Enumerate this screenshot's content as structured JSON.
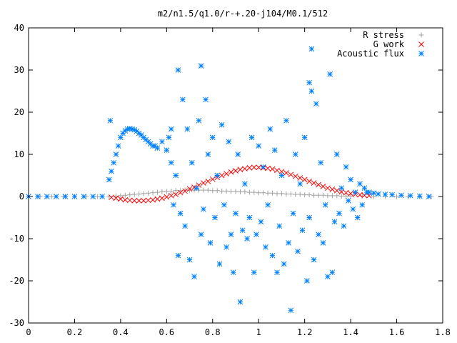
{
  "chart_data": {
    "type": "scatter",
    "title": "m2/n1.5/q1.0/r-+.20-j104/M0.1/512",
    "xlabel": "",
    "ylabel": "",
    "xlim": [
      0,
      1.8
    ],
    "ylim": [
      -30,
      40
    ],
    "x_ticks": [
      "0",
      "0.2",
      "0.4",
      "0.6",
      "0.8",
      "1",
      "1.2",
      "1.4",
      "1.6",
      "1.8"
    ],
    "y_ticks": [
      "-30",
      "-20",
      "-10",
      "0",
      "10",
      "20",
      "30",
      "40"
    ],
    "x_tick_values": [
      0,
      0.2,
      0.4,
      0.6,
      0.8,
      1.0,
      1.2,
      1.4,
      1.6,
      1.8
    ],
    "y_tick_values": [
      -30,
      -20,
      -10,
      0,
      10,
      20,
      30,
      40
    ],
    "grid": false,
    "legend_position": "top-right",
    "series": [
      {
        "name": "R stress",
        "marker": "plus",
        "color": "#a0a0a0",
        "points": [
          [
            0.0,
            0
          ],
          [
            0.05,
            0
          ],
          [
            0.1,
            0
          ],
          [
            0.15,
            0
          ],
          [
            0.2,
            0
          ],
          [
            0.25,
            0
          ],
          [
            0.3,
            0
          ],
          [
            0.35,
            0
          ],
          [
            0.38,
            0.1
          ],
          [
            0.4,
            0.2
          ],
          [
            0.42,
            0.3
          ],
          [
            0.44,
            0.4
          ],
          [
            0.46,
            0.5
          ],
          [
            0.48,
            0.6
          ],
          [
            0.5,
            0.7
          ],
          [
            0.52,
            0.8
          ],
          [
            0.54,
            0.9
          ],
          [
            0.56,
            1.0
          ],
          [
            0.58,
            1.1
          ],
          [
            0.6,
            1.2
          ],
          [
            0.62,
            1.3
          ],
          [
            0.64,
            1.4
          ],
          [
            0.66,
            1.4
          ],
          [
            0.68,
            1.5
          ],
          [
            0.7,
            1.5
          ],
          [
            0.72,
            1.5
          ],
          [
            0.74,
            1.5
          ],
          [
            0.76,
            1.5
          ],
          [
            0.78,
            1.5
          ],
          [
            0.8,
            1.4
          ],
          [
            0.82,
            1.4
          ],
          [
            0.84,
            1.3
          ],
          [
            0.86,
            1.3
          ],
          [
            0.88,
            1.2
          ],
          [
            0.9,
            1.2
          ],
          [
            0.92,
            1.1
          ],
          [
            0.94,
            1.1
          ],
          [
            0.96,
            1.0
          ],
          [
            0.98,
            1.0
          ],
          [
            1.0,
            0.9
          ],
          [
            1.02,
            0.9
          ],
          [
            1.04,
            0.8
          ],
          [
            1.06,
            0.8
          ],
          [
            1.08,
            0.7
          ],
          [
            1.1,
            0.7
          ],
          [
            1.12,
            0.6
          ],
          [
            1.14,
            0.6
          ],
          [
            1.16,
            0.5
          ],
          [
            1.18,
            0.5
          ],
          [
            1.2,
            0.4
          ],
          [
            1.22,
            0.4
          ],
          [
            1.24,
            0.3
          ],
          [
            1.26,
            0.3
          ],
          [
            1.28,
            0.3
          ],
          [
            1.3,
            0.2
          ],
          [
            1.32,
            0.2
          ],
          [
            1.34,
            0.2
          ],
          [
            1.36,
            0.1
          ],
          [
            1.38,
            0.1
          ],
          [
            1.4,
            0.1
          ],
          [
            1.45,
            0.1
          ],
          [
            1.5,
            0
          ],
          [
            1.55,
            0
          ],
          [
            1.6,
            0
          ],
          [
            1.65,
            0
          ],
          [
            1.7,
            0
          ],
          [
            1.75,
            0
          ]
        ]
      },
      {
        "name": "G work",
        "marker": "cross",
        "color": "#ff0000",
        "points": [
          [
            0.36,
            -0.2
          ],
          [
            0.38,
            -0.4
          ],
          [
            0.4,
            -0.6
          ],
          [
            0.42,
            -0.8
          ],
          [
            0.44,
            -0.9
          ],
          [
            0.46,
            -1.0
          ],
          [
            0.48,
            -1.0
          ],
          [
            0.5,
            -1.0
          ],
          [
            0.52,
            -0.9
          ],
          [
            0.54,
            -0.8
          ],
          [
            0.56,
            -0.6
          ],
          [
            0.58,
            -0.4
          ],
          [
            0.6,
            -0.1
          ],
          [
            0.62,
            0.2
          ],
          [
            0.64,
            0.5
          ],
          [
            0.66,
            0.9
          ],
          [
            0.68,
            1.3
          ],
          [
            0.7,
            1.8
          ],
          [
            0.72,
            2.2
          ],
          [
            0.74,
            2.7
          ],
          [
            0.76,
            3.2
          ],
          [
            0.78,
            3.6
          ],
          [
            0.8,
            4.1
          ],
          [
            0.82,
            4.5
          ],
          [
            0.84,
            5.0
          ],
          [
            0.86,
            5.4
          ],
          [
            0.88,
            5.8
          ],
          [
            0.9,
            6.1
          ],
          [
            0.92,
            6.4
          ],
          [
            0.94,
            6.6
          ],
          [
            0.96,
            6.8
          ],
          [
            0.98,
            6.9
          ],
          [
            1.0,
            6.9
          ],
          [
            1.02,
            6.8
          ],
          [
            1.04,
            6.7
          ],
          [
            1.06,
            6.5
          ],
          [
            1.08,
            6.2
          ],
          [
            1.1,
            5.9
          ],
          [
            1.12,
            5.6
          ],
          [
            1.14,
            5.2
          ],
          [
            1.16,
            4.8
          ],
          [
            1.18,
            4.4
          ],
          [
            1.2,
            4.0
          ],
          [
            1.22,
            3.6
          ],
          [
            1.24,
            3.2
          ],
          [
            1.26,
            2.8
          ],
          [
            1.28,
            2.4
          ],
          [
            1.3,
            2.0
          ],
          [
            1.32,
            1.7
          ],
          [
            1.34,
            1.4
          ],
          [
            1.36,
            1.1
          ],
          [
            1.38,
            0.9
          ],
          [
            1.4,
            0.7
          ],
          [
            1.42,
            0.5
          ],
          [
            1.44,
            0.4
          ],
          [
            1.46,
            0.3
          ],
          [
            1.48,
            0.2
          ]
        ]
      },
      {
        "name": "Acoustic flux",
        "marker": "star",
        "color": "#0080ff",
        "points": [
          [
            0.0,
            0
          ],
          [
            0.04,
            0
          ],
          [
            0.08,
            0
          ],
          [
            0.12,
            0
          ],
          [
            0.16,
            0
          ],
          [
            0.2,
            0
          ],
          [
            0.24,
            0
          ],
          [
            0.28,
            0
          ],
          [
            0.32,
            0
          ],
          [
            0.35,
            4
          ],
          [
            0.355,
            18
          ],
          [
            0.36,
            6
          ],
          [
            0.37,
            8
          ],
          [
            0.38,
            10
          ],
          [
            0.39,
            12
          ],
          [
            0.4,
            14
          ],
          [
            0.41,
            15
          ],
          [
            0.42,
            15.6
          ],
          [
            0.43,
            16
          ],
          [
            0.44,
            16.1
          ],
          [
            0.45,
            16
          ],
          [
            0.46,
            15.8
          ],
          [
            0.47,
            15.5
          ],
          [
            0.48,
            15
          ],
          [
            0.49,
            14.6
          ],
          [
            0.5,
            14
          ],
          [
            0.51,
            13.5
          ],
          [
            0.52,
            13
          ],
          [
            0.53,
            12.5
          ],
          [
            0.54,
            12
          ],
          [
            0.55,
            12
          ],
          [
            0.56,
            11.5
          ],
          [
            0.58,
            13
          ],
          [
            0.6,
            11
          ],
          [
            0.61,
            14
          ],
          [
            0.62,
            8
          ],
          [
            0.62,
            16
          ],
          [
            0.63,
            -2
          ],
          [
            0.64,
            5
          ],
          [
            0.65,
            -14
          ],
          [
            0.65,
            30
          ],
          [
            0.66,
            -4
          ],
          [
            0.67,
            23
          ],
          [
            0.68,
            -7
          ],
          [
            0.69,
            16
          ],
          [
            0.7,
            -15
          ],
          [
            0.71,
            8
          ],
          [
            0.72,
            -19
          ],
          [
            0.73,
            2
          ],
          [
            0.74,
            18
          ],
          [
            0.75,
            -9
          ],
          [
            0.75,
            31
          ],
          [
            0.76,
            -3
          ],
          [
            0.77,
            23
          ],
          [
            0.78,
            10
          ],
          [
            0.79,
            -11
          ],
          [
            0.8,
            14
          ],
          [
            0.81,
            -5
          ],
          [
            0.82,
            5
          ],
          [
            0.83,
            -16
          ],
          [
            0.84,
            17
          ],
          [
            0.85,
            -2
          ],
          [
            0.86,
            -12
          ],
          [
            0.87,
            13
          ],
          [
            0.88,
            -9
          ],
          [
            0.89,
            -18
          ],
          [
            0.9,
            -4
          ],
          [
            0.91,
            10
          ],
          [
            0.92,
            -25
          ],
          [
            0.93,
            -8
          ],
          [
            0.94,
            3
          ],
          [
            0.95,
            -10
          ],
          [
            0.96,
            -5
          ],
          [
            0.97,
            14
          ],
          [
            0.98,
            -18
          ],
          [
            0.99,
            -9
          ],
          [
            1.0,
            12
          ],
          [
            1.01,
            -6
          ],
          [
            1.02,
            7
          ],
          [
            1.03,
            -12
          ],
          [
            1.04,
            -2
          ],
          [
            1.05,
            16
          ],
          [
            1.06,
            -14
          ],
          [
            1.07,
            11
          ],
          [
            1.08,
            -18
          ],
          [
            1.09,
            -7
          ],
          [
            1.1,
            5
          ],
          [
            1.11,
            -16
          ],
          [
            1.12,
            18
          ],
          [
            1.13,
            -11
          ],
          [
            1.14,
            -27
          ],
          [
            1.15,
            -4
          ],
          [
            1.16,
            10
          ],
          [
            1.17,
            -13
          ],
          [
            1.18,
            3
          ],
          [
            1.19,
            -8
          ],
          [
            1.2,
            14
          ],
          [
            1.21,
            -20
          ],
          [
            1.22,
            -5
          ],
          [
            1.22,
            27
          ],
          [
            1.23,
            25
          ],
          [
            1.23,
            35
          ],
          [
            1.24,
            -15
          ],
          [
            1.25,
            22
          ],
          [
            1.26,
            -9
          ],
          [
            1.27,
            8
          ],
          [
            1.28,
            -11
          ],
          [
            1.29,
            -2
          ],
          [
            1.3,
            -19
          ],
          [
            1.31,
            29
          ],
          [
            1.32,
            -18
          ],
          [
            1.33,
            -6
          ],
          [
            1.34,
            10
          ],
          [
            1.35,
            -4
          ],
          [
            1.36,
            2
          ],
          [
            1.37,
            -7
          ],
          [
            1.38,
            7
          ],
          [
            1.39,
            -1
          ],
          [
            1.4,
            4
          ],
          [
            1.41,
            -3
          ],
          [
            1.42,
            1
          ],
          [
            1.43,
            -5
          ],
          [
            1.44,
            3
          ],
          [
            1.45,
            -2
          ],
          [
            1.46,
            2
          ],
          [
            1.47,
            1
          ],
          [
            1.48,
            1
          ],
          [
            1.5,
            0.8
          ],
          [
            1.52,
            0.6
          ],
          [
            1.55,
            0.5
          ],
          [
            1.58,
            0.4
          ],
          [
            1.62,
            0.3
          ],
          [
            1.66,
            0.2
          ],
          [
            1.7,
            0.1
          ],
          [
            1.74,
            0
          ]
        ]
      }
    ]
  },
  "colors": {
    "r_stress": "#a0a0a0",
    "g_work": "#ff0000",
    "acoustic_flux": "#0080ff"
  }
}
